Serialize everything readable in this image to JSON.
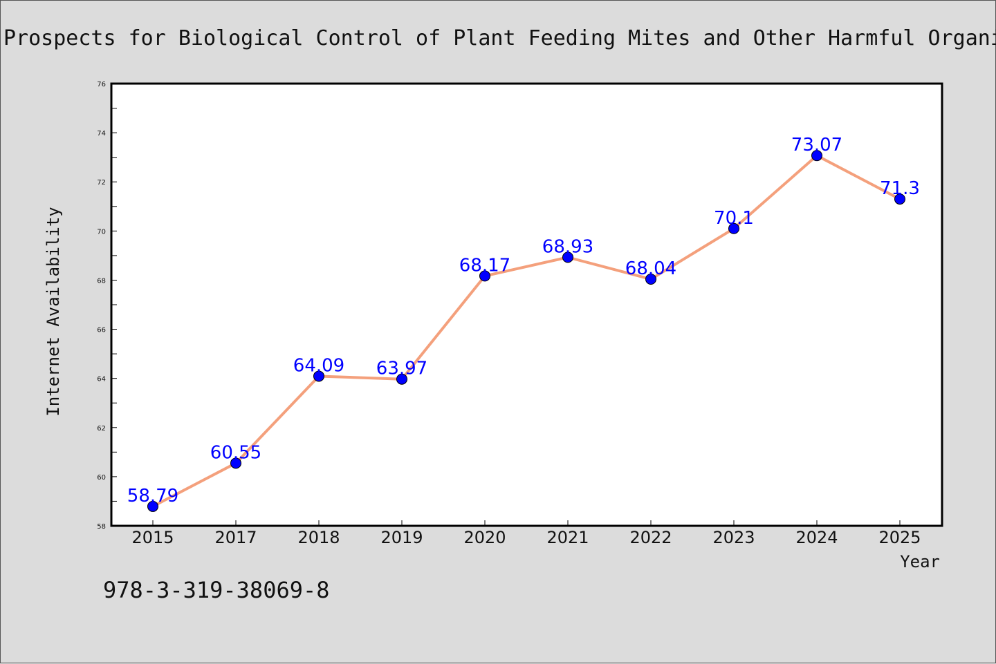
{
  "chart_data": {
    "type": "line",
    "title": "Prospects for Biological Control of Plant Feeding Mites and Other Harmful Organi",
    "xlabel": "Year",
    "ylabel": "Internet Availability",
    "categories": [
      "2015",
      "2017",
      "2018",
      "2019",
      "2020",
      "2021",
      "2022",
      "2023",
      "2024",
      "2025"
    ],
    "values": [
      58.79,
      60.55,
      64.09,
      63.97,
      68.17,
      68.93,
      68.04,
      70.1,
      73.07,
      71.3
    ],
    "data_labels": [
      "58.79",
      "60.55",
      "64.09",
      "63.97",
      "68.17",
      "68.93",
      "68.04",
      "70.1",
      "73.07",
      "71.3"
    ],
    "ylim": [
      58,
      76
    ],
    "yticks": [
      "58",
      "60",
      "62",
      "64",
      "66",
      "68",
      "70",
      "72",
      "74",
      "76"
    ],
    "grid": false,
    "line_color": "#f4a07c",
    "marker_color": "#0000ff",
    "label_color": "#0000ff"
  },
  "footnote": "978-3-319-38069-8"
}
